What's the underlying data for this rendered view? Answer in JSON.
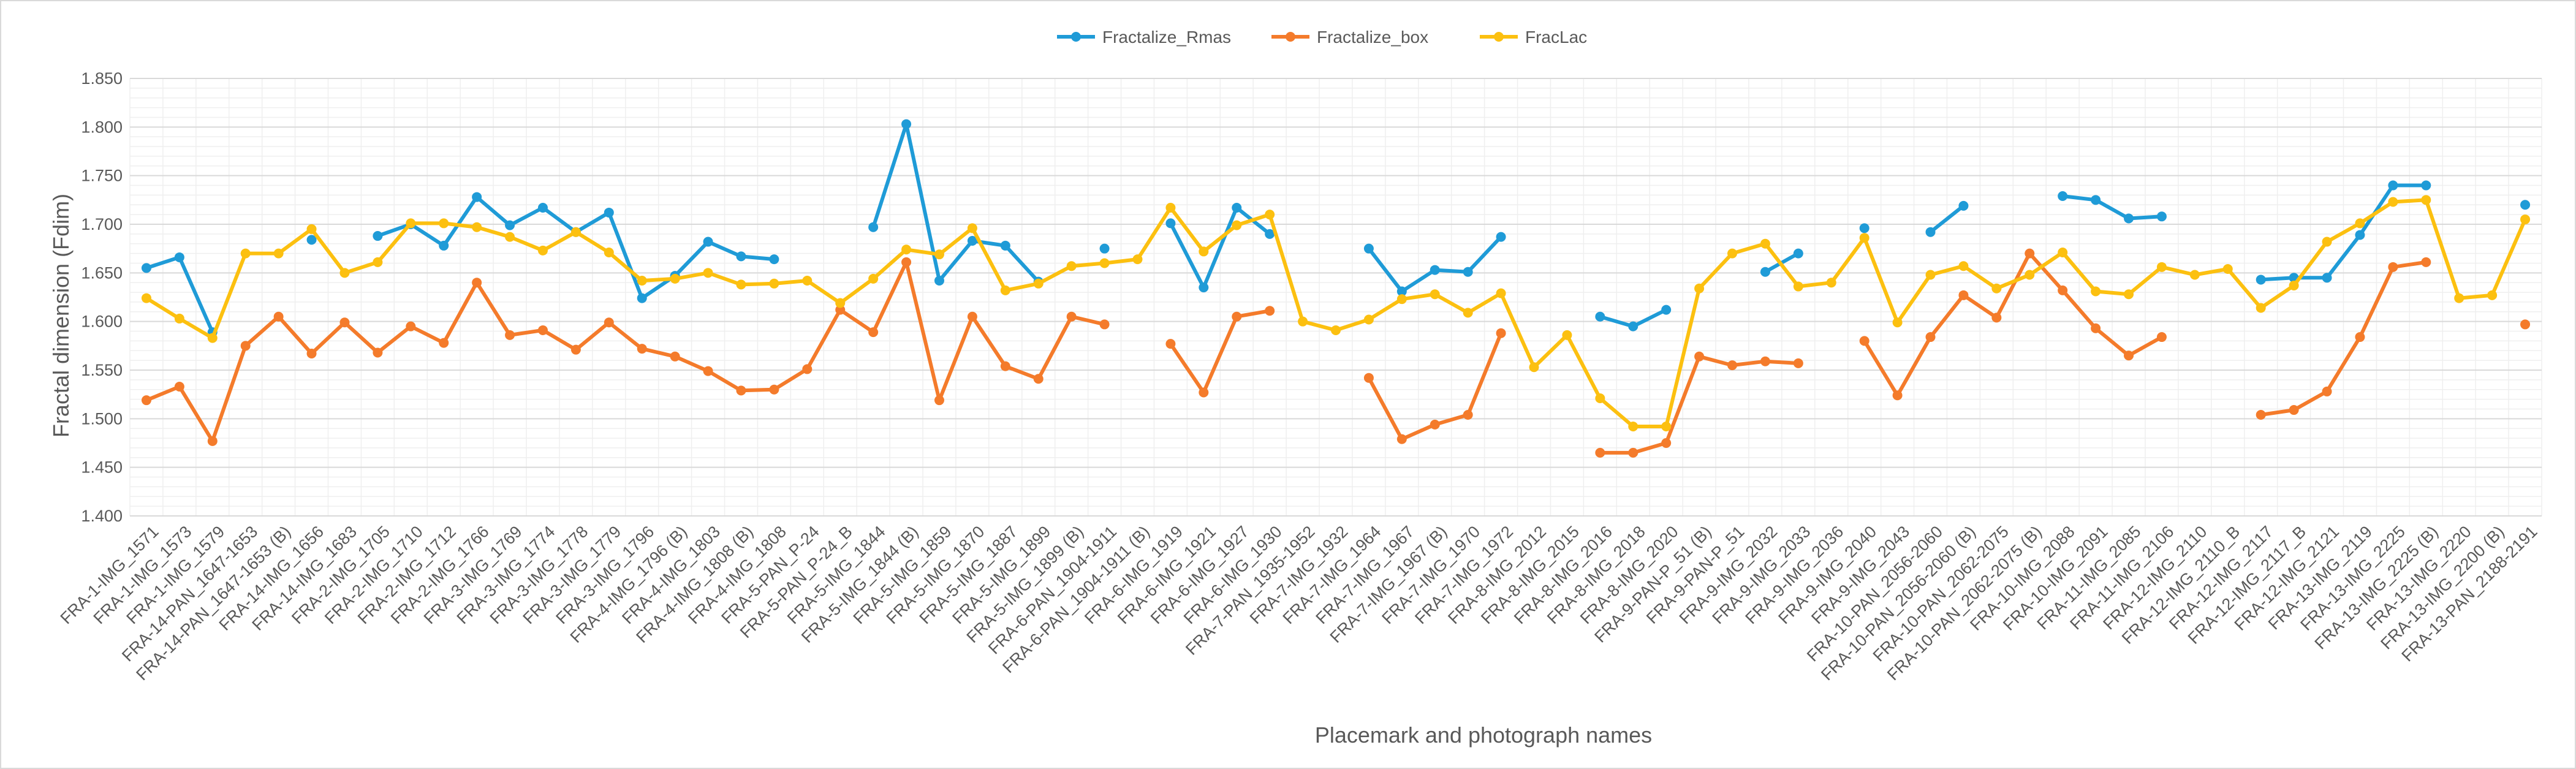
{
  "chart_data": {
    "type": "line",
    "title": "",
    "xlabel": "Placemark and photograph names",
    "ylabel": "Fractal dimension (Fdim)",
    "ylim": [
      1.4,
      1.85
    ],
    "y_ticks": [
      "1.400",
      "1.450",
      "1.500",
      "1.550",
      "1.600",
      "1.650",
      "1.700",
      "1.750",
      "1.800",
      "1.850"
    ],
    "grid": "major and minor",
    "legend_position": "top-center",
    "x_label_rotation": -45,
    "categories": [
      "FRA-1-IMG_1571",
      "FRA-1-IMG_1573",
      "FRA-1-IMG_1579",
      "FRA-14-PAN_1647-1653",
      "FRA-14-PAN_1647-1653 (B)",
      "FRA-14-IMG_1656",
      "FRA-14-IMG_1683",
      "FRA-2-IMG_1705",
      "FRA-2-IMG_1710",
      "FRA-2-IMG_1712",
      "FRA-2-IMG_1766",
      "FRA-3-IMG_1769",
      "FRA-3-IMG_1774",
      "FRA-3-IMG_1778",
      "FRA-3-IMG_1779",
      "FRA-3-IMG_1796",
      "FRA-4-IMG_1796 (B)",
      "FRA-4-IMG_1803",
      "FRA-4-IMG_1808 (B)",
      "FRA-4-IMG_1808",
      "FRA-5-PAN_P-24",
      "FRA-5-PAN_P-24_B",
      "FRA-5-IMG_1844",
      "FRA-5-IMG_1844 (B)",
      "FRA-5-IMG_1859",
      "FRA-5-IMG_1870",
      "FRA-5-IMG_1887",
      "FRA-5-IMG_1899",
      "FRA-5-IMG_1899 (B)",
      "FRA-6-PAN_1904-1911",
      "FRA-6-PAN_1904-1911 (B)",
      "FRA-6-IMG_1919",
      "FRA-6-IMG_1921",
      "FRA-6-IMG_1927",
      "FRA-6-IMG_1930",
      "FRA-7-PAN_1935-1952",
      "FRA-7-IMG_1932",
      "FRA-7-IMG_1964",
      "FRA-7-IMG_1967",
      "FRA-7-IMG_1967 (B)",
      "FRA-7-IMG_1970",
      "FRA-7-IMG_1972",
      "FRA-8-IMG_2012",
      "FRA-8-IMG_2015",
      "FRA-8-IMG_2016",
      "FRA-8-IMG_2018",
      "FRA-8-IMG_2020",
      "FRA-9-PAN-P_51 (B)",
      "FRA-9-PAN-P_51",
      "FRA-9-IMG_2032",
      "FRA-9-IMG_2033",
      "FRA-9-IMG_2036",
      "FRA-9-IMG_2040",
      "FRA-9-IMG_2043",
      "FRA-10-PAN_2056-2060",
      "FRA-10-PAN_2056-2060 (B)",
      "FRA-10-PAN_2062-2075",
      "FRA-10-PAN_2062-2075 (B)",
      "FRA-10-IMG_2088",
      "FRA-10-IMG_2091",
      "FRA-11-IMG_2085",
      "FRA-11-IMG_2106",
      "FRA-12-IMG_2110",
      "FRA-12-IMG_2110_B",
      "FRA-12-IMG_2117",
      "FRA-12-IMG_2117_B",
      "FRA-12-IMG_2121",
      "FRA-13-IMG_2119",
      "FRA-13-IMG_2225",
      "FRA-13-IMG_2225 (B)",
      "FRA-13-IMG_2220",
      "FRA-13-IMG_2200 (B)",
      "FRA-13-PAN_2188-2191"
    ],
    "series": [
      {
        "name": "Fractalize_Rmas",
        "color": "#1f9bd7",
        "values": [
          1.655,
          1.666,
          1.589,
          null,
          null,
          1.684,
          null,
          1.688,
          1.7,
          1.678,
          1.728,
          1.699,
          1.717,
          1.692,
          1.712,
          1.624,
          1.647,
          1.682,
          1.667,
          1.664,
          null,
          null,
          1.697,
          1.803,
          1.642,
          1.683,
          1.678,
          1.641,
          null,
          1.675,
          null,
          1.701,
          1.635,
          1.717,
          1.69,
          null,
          null,
          1.675,
          1.631,
          1.653,
          1.651,
          1.687,
          null,
          null,
          1.605,
          1.595,
          1.612,
          null,
          null,
          1.651,
          1.67,
          null,
          1.696,
          null,
          1.692,
          1.719,
          null,
          null,
          1.729,
          1.725,
          1.706,
          1.708,
          null,
          null,
          1.643,
          1.645,
          1.645,
          1.689,
          1.74,
          1.74,
          null,
          null,
          1.72
        ]
      },
      {
        "name": "Fractalize_box",
        "color": "#f47b2b",
        "values": [
          1.519,
          1.533,
          1.477,
          1.575,
          1.605,
          1.567,
          1.599,
          1.568,
          1.595,
          1.578,
          1.64,
          1.586,
          1.591,
          1.571,
          1.599,
          1.572,
          1.564,
          1.549,
          1.529,
          1.53,
          1.551,
          1.612,
          1.589,
          1.661,
          1.519,
          1.605,
          1.554,
          1.541,
          1.605,
          1.597,
          null,
          1.577,
          1.527,
          1.605,
          1.611,
          null,
          null,
          1.542,
          1.479,
          1.494,
          1.504,
          1.588,
          null,
          null,
          1.465,
          1.465,
          1.475,
          1.564,
          1.555,
          1.559,
          1.557,
          null,
          1.58,
          1.524,
          1.584,
          1.627,
          1.604,
          1.67,
          1.632,
          1.593,
          1.565,
          1.584,
          null,
          null,
          1.504,
          1.509,
          1.528,
          1.584,
          1.656,
          1.661,
          null,
          null,
          1.597
        ]
      },
      {
        "name": "FracLac",
        "color": "#fcc010",
        "values": [
          1.624,
          1.603,
          1.583,
          1.67,
          1.67,
          1.695,
          1.65,
          1.661,
          1.701,
          1.701,
          1.697,
          1.687,
          1.673,
          1.692,
          1.671,
          1.642,
          1.644,
          1.65,
          1.638,
          1.639,
          1.642,
          1.619,
          1.644,
          1.674,
          1.669,
          1.696,
          1.632,
          1.639,
          1.657,
          1.66,
          1.664,
          1.717,
          1.672,
          1.699,
          1.71,
          1.6,
          1.591,
          1.602,
          1.623,
          1.628,
          1.609,
          1.629,
          1.553,
          1.586,
          1.521,
          1.492,
          1.492,
          1.634,
          1.67,
          1.68,
          1.636,
          1.64,
          1.686,
          1.599,
          1.648,
          1.657,
          1.634,
          1.648,
          1.671,
          1.631,
          1.628,
          1.656,
          1.648,
          1.654,
          1.614,
          1.637,
          1.682,
          1.701,
          1.723,
          1.725,
          1.624,
          1.627,
          1.705
        ]
      }
    ]
  }
}
